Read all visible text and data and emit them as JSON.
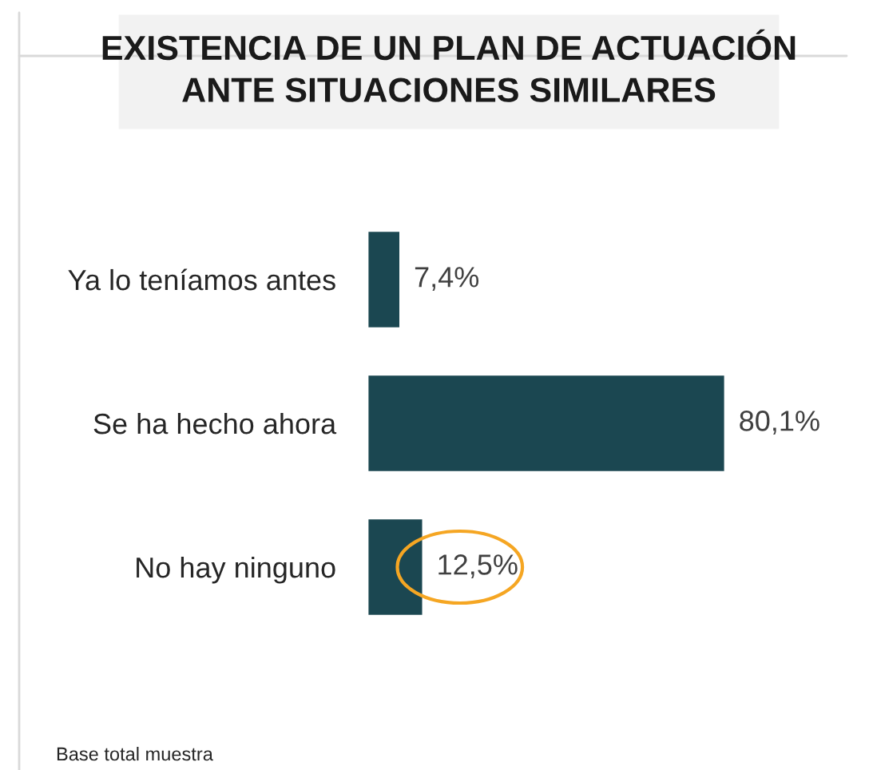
{
  "chart_data": {
    "type": "bar",
    "orientation": "horizontal",
    "title": "EXISTENCIA DE UN PLAN DE ACTUACIÓN\nANTE SITUACIONES SIMILARES",
    "categories": [
      "Ya lo teníamos antes",
      "Se ha hecho ahora",
      "No hay ninguno"
    ],
    "values": [
      7.4,
      80.1,
      12.5
    ],
    "value_labels": [
      "7,4%",
      "80,1%",
      "12,5%"
    ],
    "color": "#1b4751",
    "tick_labels": "y",
    "grid": false,
    "legend": false,
    "annotations": [
      "Base total muestra"
    ]
  }
}
